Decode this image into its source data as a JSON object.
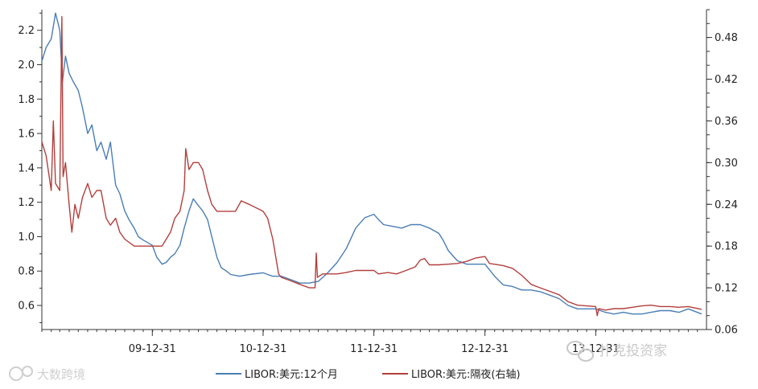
{
  "chart_data": {
    "type": "line",
    "title": "",
    "x_ticks": [
      "09-12-31",
      "10-12-31",
      "11-12-31",
      "12-12-31",
      "13-12-31"
    ],
    "left_axis": {
      "ylim": [
        0.46,
        2.32
      ],
      "ticks": [
        "0.6",
        "0.8",
        "1.0",
        "1.2",
        "1.4",
        "1.6",
        "1.8",
        "2.0",
        "2.2"
      ]
    },
    "right_axis": {
      "ylim": [
        0.06,
        0.52
      ],
      "ticks": [
        "0.06",
        "0.12",
        "0.18",
        "0.24",
        "0.30",
        "0.36",
        "0.42",
        "0.48"
      ]
    },
    "series": [
      {
        "name": "LIBOR:美元:12个月",
        "axis": "left",
        "color": "#4a7eb5",
        "points": [
          [
            "2009-01-01",
            2.02
          ],
          [
            "2009-01-15",
            2.1
          ],
          [
            "2009-02-01",
            2.15
          ],
          [
            "2009-02-15",
            2.3
          ],
          [
            "2009-03-01",
            2.2
          ],
          [
            "2009-03-10",
            1.9
          ],
          [
            "2009-03-20",
            2.05
          ],
          [
            "2009-04-01",
            1.95
          ],
          [
            "2009-04-15",
            1.9
          ],
          [
            "2009-05-01",
            1.85
          ],
          [
            "2009-05-15",
            1.75
          ],
          [
            "2009-06-01",
            1.6
          ],
          [
            "2009-06-15",
            1.65
          ],
          [
            "2009-07-01",
            1.5
          ],
          [
            "2009-07-15",
            1.55
          ],
          [
            "2009-08-01",
            1.45
          ],
          [
            "2009-08-15",
            1.55
          ],
          [
            "2009-09-01",
            1.3
          ],
          [
            "2009-09-15",
            1.25
          ],
          [
            "2009-10-01",
            1.15
          ],
          [
            "2009-10-15",
            1.1
          ],
          [
            "2009-11-01",
            1.05
          ],
          [
            "2009-11-15",
            1.0
          ],
          [
            "2009-12-01",
            0.98
          ],
          [
            "2009-12-31",
            0.95
          ],
          [
            "2010-01-15",
            0.88
          ],
          [
            "2010-02-01",
            0.84
          ],
          [
            "2010-02-15",
            0.85
          ],
          [
            "2010-03-01",
            0.88
          ],
          [
            "2010-03-15",
            0.9
          ],
          [
            "2010-04-01",
            0.95
          ],
          [
            "2010-04-15",
            1.05
          ],
          [
            "2010-05-01",
            1.15
          ],
          [
            "2010-05-15",
            1.22
          ],
          [
            "2010-06-01",
            1.18
          ],
          [
            "2010-06-15",
            1.15
          ],
          [
            "2010-07-01",
            1.1
          ],
          [
            "2010-07-15",
            1.0
          ],
          [
            "2010-08-01",
            0.88
          ],
          [
            "2010-08-15",
            0.82
          ],
          [
            "2010-09-01",
            0.8
          ],
          [
            "2010-09-15",
            0.78
          ],
          [
            "2010-10-15",
            0.77
          ],
          [
            "2010-11-15",
            0.78
          ],
          [
            "2010-12-31",
            0.79
          ],
          [
            "2011-01-15",
            0.78
          ],
          [
            "2011-02-01",
            0.77
          ],
          [
            "2011-03-01",
            0.77
          ],
          [
            "2011-04-01",
            0.75
          ],
          [
            "2011-05-01",
            0.73
          ],
          [
            "2011-06-01",
            0.73
          ],
          [
            "2011-07-01",
            0.74
          ],
          [
            "2011-08-01",
            0.79
          ],
          [
            "2011-09-01",
            0.85
          ],
          [
            "2011-10-01",
            0.93
          ],
          [
            "2011-11-01",
            1.05
          ],
          [
            "2011-12-01",
            1.11
          ],
          [
            "2011-12-31",
            1.13
          ],
          [
            "2012-01-15",
            1.1
          ],
          [
            "2012-02-01",
            1.07
          ],
          [
            "2012-03-01",
            1.06
          ],
          [
            "2012-04-01",
            1.05
          ],
          [
            "2012-05-01",
            1.07
          ],
          [
            "2012-06-01",
            1.07
          ],
          [
            "2012-07-01",
            1.05
          ],
          [
            "2012-08-01",
            1.02
          ],
          [
            "2012-08-15",
            0.98
          ],
          [
            "2012-09-01",
            0.92
          ],
          [
            "2012-10-01",
            0.86
          ],
          [
            "2012-11-01",
            0.84
          ],
          [
            "2012-12-31",
            0.84
          ],
          [
            "2013-02-01",
            0.77
          ],
          [
            "2013-03-01",
            0.72
          ],
          [
            "2013-04-01",
            0.71
          ],
          [
            "2013-05-01",
            0.69
          ],
          [
            "2013-06-01",
            0.69
          ],
          [
            "2013-07-01",
            0.68
          ],
          [
            "2013-08-01",
            0.66
          ],
          [
            "2013-09-01",
            0.64
          ],
          [
            "2013-10-01",
            0.6
          ],
          [
            "2013-11-01",
            0.58
          ],
          [
            "2013-12-31",
            0.58
          ],
          [
            "2014-02-01",
            0.56
          ],
          [
            "2014-03-01",
            0.55
          ],
          [
            "2014-04-01",
            0.56
          ],
          [
            "2014-05-01",
            0.55
          ],
          [
            "2014-06-01",
            0.55
          ],
          [
            "2014-07-01",
            0.56
          ],
          [
            "2014-08-01",
            0.57
          ],
          [
            "2014-09-01",
            0.57
          ],
          [
            "2014-10-01",
            0.56
          ],
          [
            "2014-11-01",
            0.58
          ],
          [
            "2014-12-15",
            0.55
          ]
        ]
      },
      {
        "name": "LIBOR:美元:隔夜(右轴)",
        "axis": "right",
        "color": "#b33f3d",
        "points": [
          [
            "2009-01-01",
            0.33
          ],
          [
            "2009-01-15",
            0.31
          ],
          [
            "2009-02-01",
            0.26
          ],
          [
            "2009-02-08",
            0.36
          ],
          [
            "2009-02-15",
            0.27
          ],
          [
            "2009-03-01",
            0.26
          ],
          [
            "2009-03-08",
            0.51
          ],
          [
            "2009-03-12",
            0.28
          ],
          [
            "2009-03-20",
            0.3
          ],
          [
            "2009-04-01",
            0.24
          ],
          [
            "2009-04-10",
            0.2
          ],
          [
            "2009-04-20",
            0.24
          ],
          [
            "2009-05-01",
            0.22
          ],
          [
            "2009-05-15",
            0.25
          ],
          [
            "2009-06-01",
            0.27
          ],
          [
            "2009-06-15",
            0.25
          ],
          [
            "2009-07-01",
            0.26
          ],
          [
            "2009-07-15",
            0.26
          ],
          [
            "2009-08-01",
            0.22
          ],
          [
            "2009-08-15",
            0.21
          ],
          [
            "2009-09-01",
            0.22
          ],
          [
            "2009-09-15",
            0.2
          ],
          [
            "2009-10-01",
            0.19
          ],
          [
            "2009-11-01",
            0.18
          ],
          [
            "2009-12-01",
            0.18
          ],
          [
            "2009-12-31",
            0.18
          ],
          [
            "2010-01-15",
            0.18
          ],
          [
            "2010-02-01",
            0.18
          ],
          [
            "2010-02-15",
            0.19
          ],
          [
            "2010-03-01",
            0.2
          ],
          [
            "2010-03-15",
            0.22
          ],
          [
            "2010-04-01",
            0.23
          ],
          [
            "2010-04-15",
            0.26
          ],
          [
            "2010-04-20",
            0.32
          ],
          [
            "2010-05-01",
            0.29
          ],
          [
            "2010-05-15",
            0.3
          ],
          [
            "2010-06-01",
            0.3
          ],
          [
            "2010-06-15",
            0.29
          ],
          [
            "2010-07-01",
            0.26
          ],
          [
            "2010-07-15",
            0.24
          ],
          [
            "2010-08-01",
            0.23
          ],
          [
            "2010-09-01",
            0.23
          ],
          [
            "2010-10-01",
            0.23
          ],
          [
            "2010-10-20",
            0.245
          ],
          [
            "2010-11-15",
            0.24
          ],
          [
            "2010-12-31",
            0.23
          ],
          [
            "2011-01-15",
            0.22
          ],
          [
            "2011-02-01",
            0.19
          ],
          [
            "2011-02-20",
            0.14
          ],
          [
            "2011-03-01",
            0.135
          ],
          [
            "2011-04-01",
            0.13
          ],
          [
            "2011-05-01",
            0.125
          ],
          [
            "2011-06-01",
            0.12
          ],
          [
            "2011-06-20",
            0.12
          ],
          [
            "2011-06-24",
            0.17
          ],
          [
            "2011-06-28",
            0.135
          ],
          [
            "2011-07-15",
            0.14
          ],
          [
            "2011-08-01",
            0.14
          ],
          [
            "2011-09-01",
            0.14
          ],
          [
            "2011-10-01",
            0.142
          ],
          [
            "2011-11-01",
            0.145
          ],
          [
            "2011-12-31",
            0.145
          ],
          [
            "2012-01-15",
            0.14
          ],
          [
            "2012-02-15",
            0.142
          ],
          [
            "2012-03-15",
            0.14
          ],
          [
            "2012-04-15",
            0.145
          ],
          [
            "2012-05-15",
            0.15
          ],
          [
            "2012-06-01",
            0.16
          ],
          [
            "2012-06-15",
            0.162
          ],
          [
            "2012-07-01",
            0.153
          ],
          [
            "2012-08-01",
            0.153
          ],
          [
            "2012-09-01",
            0.154
          ],
          [
            "2012-10-01",
            0.155
          ],
          [
            "2012-11-01",
            0.158
          ],
          [
            "2012-12-01",
            0.163
          ],
          [
            "2012-12-31",
            0.165
          ],
          [
            "2013-01-15",
            0.155
          ],
          [
            "2013-03-01",
            0.152
          ],
          [
            "2013-04-01",
            0.148
          ],
          [
            "2013-05-01",
            0.138
          ],
          [
            "2013-06-01",
            0.125
          ],
          [
            "2013-07-01",
            0.12
          ],
          [
            "2013-08-01",
            0.115
          ],
          [
            "2013-09-01",
            0.11
          ],
          [
            "2013-10-01",
            0.1
          ],
          [
            "2013-11-01",
            0.095
          ],
          [
            "2013-12-31",
            0.093
          ],
          [
            "2014-01-05",
            0.08
          ],
          [
            "2014-01-10",
            0.09
          ],
          [
            "2014-02-01",
            0.088
          ],
          [
            "2014-03-01",
            0.09
          ],
          [
            "2014-04-01",
            0.09
          ],
          [
            "2014-05-01",
            0.092
          ],
          [
            "2014-06-01",
            0.094
          ],
          [
            "2014-07-01",
            0.095
          ],
          [
            "2014-08-01",
            0.093
          ],
          [
            "2014-09-01",
            0.093
          ],
          [
            "2014-10-01",
            0.092
          ],
          [
            "2014-11-01",
            0.093
          ],
          [
            "2014-12-15",
            0.089
          ]
        ]
      }
    ],
    "legend": {
      "placement": "bottom-center"
    },
    "grid": false
  },
  "watermarks": {
    "left_text": "大数跨境",
    "right_text": "扑克投资家"
  }
}
